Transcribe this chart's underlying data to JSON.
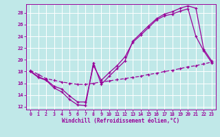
{
  "background_color": "#c0e8e8",
  "grid_color": "#ffffff",
  "line_color": "#990099",
  "xlabel": "Windchill (Refroidissement éolien,°C)",
  "xlim": [
    -0.5,
    23.5
  ],
  "ylim": [
    11.5,
    29.5
  ],
  "xticks": [
    0,
    1,
    2,
    3,
    4,
    5,
    6,
    7,
    8,
    9,
    10,
    11,
    12,
    13,
    14,
    15,
    16,
    17,
    18,
    19,
    20,
    21,
    22,
    23
  ],
  "yticks": [
    12,
    14,
    16,
    18,
    20,
    22,
    24,
    26,
    28
  ],
  "line1_x": [
    0,
    1,
    2,
    3,
    4,
    5,
    6,
    7,
    8,
    9,
    10,
    11,
    12,
    13,
    14,
    15,
    16,
    17,
    18,
    19,
    20,
    21,
    22,
    23
  ],
  "line1_y": [
    18.0,
    17.0,
    16.5,
    15.2,
    14.5,
    13.2,
    12.3,
    12.2,
    19.5,
    15.8,
    17.2,
    18.5,
    19.8,
    23.2,
    24.5,
    25.8,
    27.0,
    27.8,
    28.2,
    28.8,
    29.2,
    28.8,
    21.8,
    19.8
  ],
  "line2_x": [
    0,
    1,
    2,
    3,
    4,
    5,
    6,
    7,
    8,
    9,
    10,
    11,
    12,
    13,
    14,
    15,
    16,
    17,
    18,
    19,
    20,
    21,
    22,
    23
  ],
  "line2_y": [
    18.1,
    17.1,
    16.6,
    15.5,
    15.0,
    13.8,
    12.8,
    12.8,
    19.0,
    16.5,
    17.8,
    19.0,
    20.5,
    23.0,
    24.2,
    25.5,
    26.8,
    27.5,
    27.8,
    28.3,
    28.7,
    24.0,
    21.5,
    19.5
  ],
  "line3_x": [
    0,
    1,
    2,
    3,
    4,
    5,
    6,
    7,
    8,
    9,
    10,
    11,
    12,
    13,
    14,
    15,
    16,
    17,
    18,
    19,
    20,
    21,
    22,
    23
  ],
  "line3_y": [
    18.2,
    17.5,
    16.8,
    16.5,
    16.2,
    16.0,
    15.8,
    15.8,
    16.0,
    16.2,
    16.4,
    16.6,
    16.8,
    17.0,
    17.2,
    17.5,
    17.7,
    18.0,
    18.2,
    18.5,
    18.8,
    19.0,
    19.3,
    19.6
  ]
}
